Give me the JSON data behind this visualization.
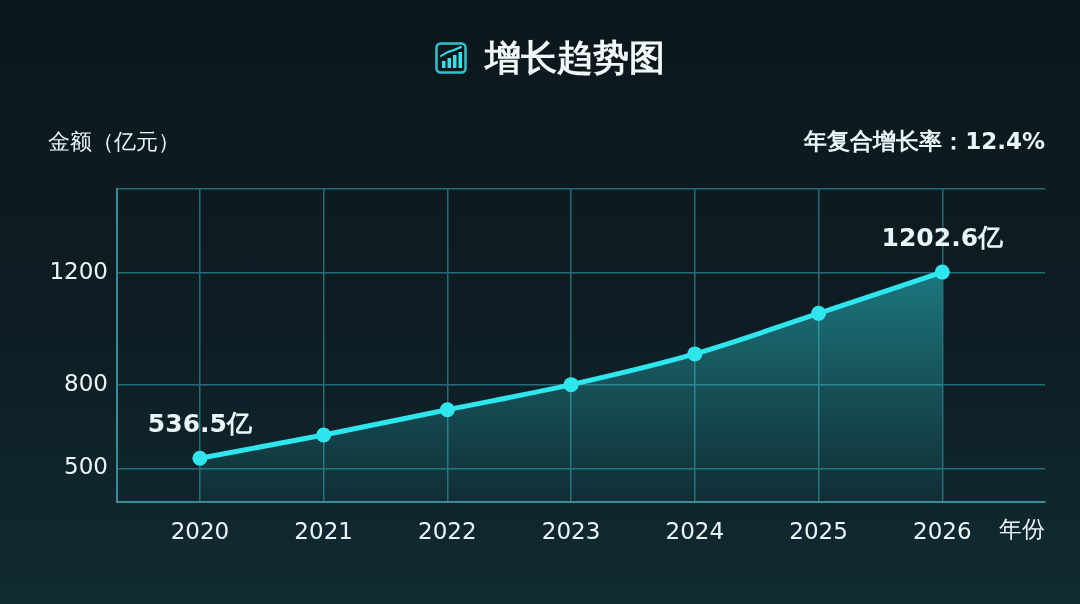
{
  "chart_data": {
    "type": "area",
    "title": "增长趋势图",
    "xlabel": "年份",
    "ylabel": "金额（亿元）",
    "annotations": [
      "年复合增长率：12.4%"
    ],
    "categories": [
      "2020",
      "2021",
      "2022",
      "2023",
      "2024",
      "2025",
      "2026"
    ],
    "values": [
      536.5,
      620,
      710,
      800,
      910,
      1055,
      1202.6
    ],
    "color": "#2ee6ee",
    "value_labels": [
      "536.5亿",
      null,
      null,
      null,
      null,
      null,
      "1202.6亿"
    ],
    "ylim": [
      380,
      1500
    ],
    "yticks": [
      500,
      800,
      1200,
      {
        "value": 1500,
        "label": null
      }
    ],
    "grid": true,
    "marker": "circle",
    "line_style": "solid"
  }
}
